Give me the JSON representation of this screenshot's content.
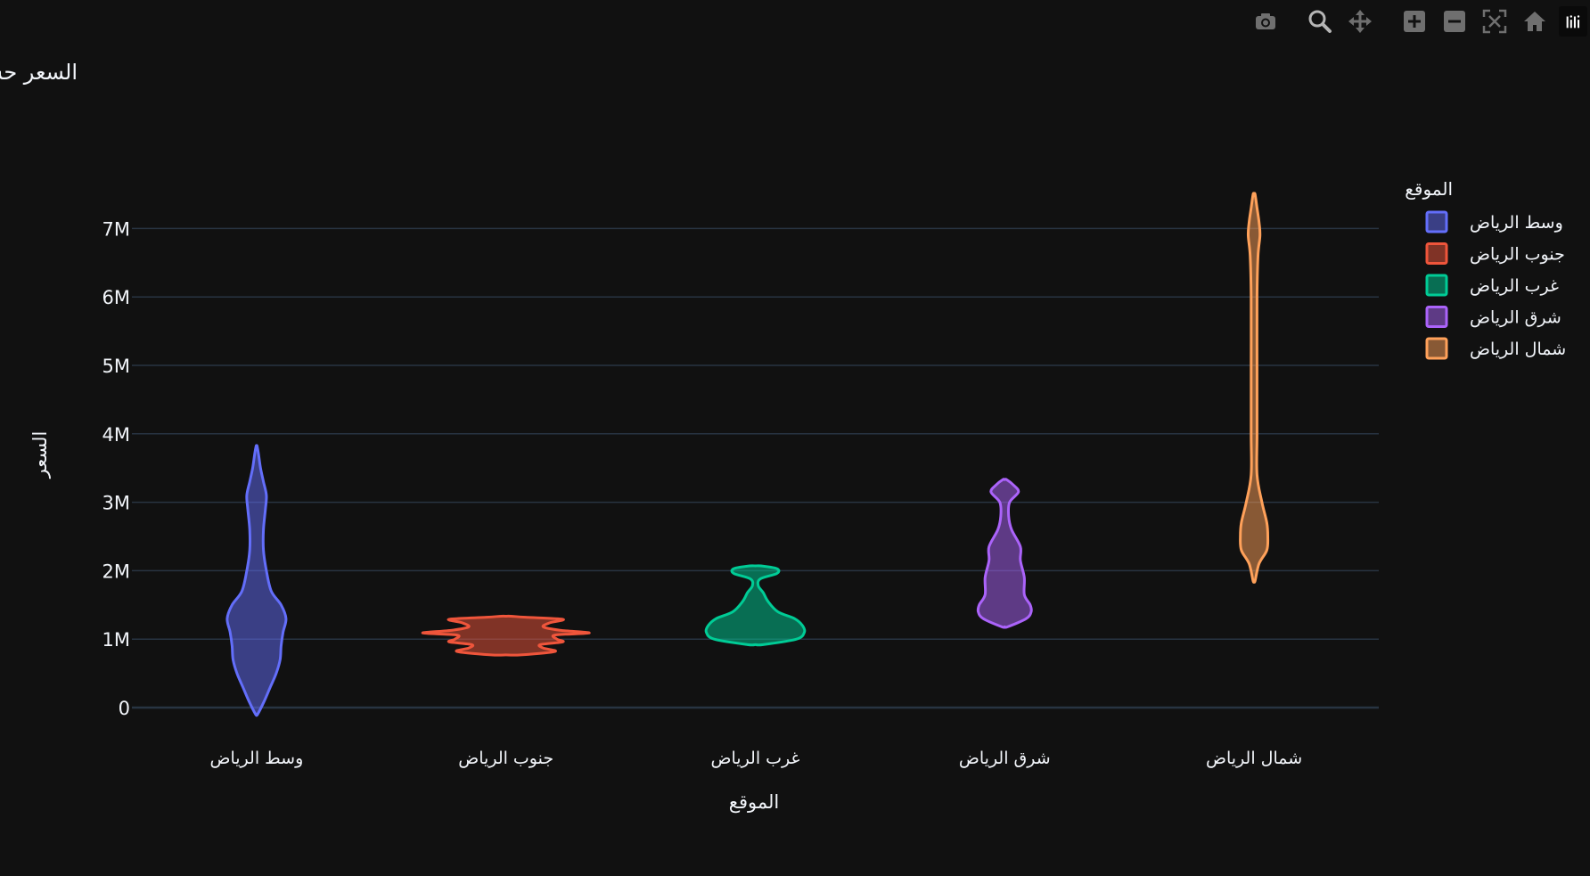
{
  "modebar": {
    "buttons": [
      "camera-icon",
      "zoom-icon",
      "pan-icon",
      "zoom-in-icon",
      "zoom-out-icon",
      "autoscale-icon",
      "home-icon",
      "plotly-logo-icon"
    ]
  },
  "colors": {
    "background": "#111111",
    "grid": "#283442",
    "text": "#f2f5fa",
    "toolbar_icon": "#6f6f6f"
  },
  "chart_data": {
    "type": "violin",
    "title": "السعر حسب الموقع",
    "xlabel": "الموقع",
    "ylabel": "السعر",
    "categories": [
      "وسط الرياض",
      "جنوب الرياض",
      "غرب الرياض",
      "شرق الرياض",
      "شمال الرياض"
    ],
    "ylim": [
      -200000,
      7500000
    ],
    "yticks": [
      0,
      1000000,
      2000000,
      3000000,
      4000000,
      5000000,
      6000000,
      7000000
    ],
    "ytick_labels": [
      "0",
      "1M",
      "2M",
      "3M",
      "4M",
      "5M",
      "6M",
      "7M"
    ],
    "grid": true,
    "legend_title": "الموقع",
    "legend_position": "top-right",
    "series": [
      {
        "name": "وسط الرياض",
        "color": "#636efa",
        "density": [
          [
            -100000,
            0.01
          ],
          [
            100000,
            0.08
          ],
          [
            300000,
            0.14
          ],
          [
            500000,
            0.2
          ],
          [
            700000,
            0.24
          ],
          [
            900000,
            0.25
          ],
          [
            1100000,
            0.27
          ],
          [
            1300000,
            0.3
          ],
          [
            1500000,
            0.25
          ],
          [
            1700000,
            0.15
          ],
          [
            2000000,
            0.1
          ],
          [
            2300000,
            0.07
          ],
          [
            2600000,
            0.07
          ],
          [
            2900000,
            0.09
          ],
          [
            3100000,
            0.1
          ],
          [
            3300000,
            0.07
          ],
          [
            3500000,
            0.04
          ],
          [
            3700000,
            0.02
          ],
          [
            3820000,
            0.005
          ]
        ]
      },
      {
        "name": "جنوب الرياض",
        "color": "#ef553b",
        "density": [
          [
            770000,
            0.15
          ],
          [
            820000,
            0.5
          ],
          [
            870000,
            0.38
          ],
          [
            920000,
            0.35
          ],
          [
            960000,
            0.58
          ],
          [
            1000000,
            0.52
          ],
          [
            1060000,
            0.5
          ],
          [
            1090000,
            0.85
          ],
          [
            1130000,
            0.55
          ],
          [
            1180000,
            0.38
          ],
          [
            1240000,
            0.45
          ],
          [
            1290000,
            0.58
          ],
          [
            1320000,
            0.2
          ],
          [
            1335000,
            0.05
          ]
        ]
      },
      {
        "name": "غرب الرياض",
        "color": "#00cc96",
        "density": [
          [
            920000,
            0.08
          ],
          [
            1000000,
            0.42
          ],
          [
            1100000,
            0.5
          ],
          [
            1200000,
            0.48
          ],
          [
            1300000,
            0.4
          ],
          [
            1400000,
            0.23
          ],
          [
            1550000,
            0.13
          ],
          [
            1680000,
            0.08
          ],
          [
            1780000,
            0.03
          ],
          [
            1880000,
            0.05
          ],
          [
            1960000,
            0.22
          ],
          [
            2030000,
            0.22
          ],
          [
            2070000,
            0.06
          ]
        ]
      },
      {
        "name": "شرق الرياض",
        "color": "#ab63fa",
        "density": [
          [
            1180000,
            0.03
          ],
          [
            1300000,
            0.22
          ],
          [
            1400000,
            0.27
          ],
          [
            1500000,
            0.26
          ],
          [
            1650000,
            0.2
          ],
          [
            1900000,
            0.2
          ],
          [
            2150000,
            0.16
          ],
          [
            2350000,
            0.16
          ],
          [
            2600000,
            0.07
          ],
          [
            2800000,
            0.04
          ],
          [
            3000000,
            0.05
          ],
          [
            3150000,
            0.14
          ],
          [
            3250000,
            0.09
          ],
          [
            3330000,
            0.02
          ]
        ]
      },
      {
        "name": "شمال الرياض",
        "color": "#ffa15a",
        "density": [
          [
            1850000,
            0.01
          ],
          [
            2100000,
            0.05
          ],
          [
            2300000,
            0.13
          ],
          [
            2500000,
            0.14
          ],
          [
            2700000,
            0.13
          ],
          [
            3000000,
            0.08
          ],
          [
            3400000,
            0.03
          ],
          [
            4000000,
            0.03
          ],
          [
            5000000,
            0.03
          ],
          [
            6000000,
            0.03
          ],
          [
            6600000,
            0.04
          ],
          [
            6900000,
            0.06
          ],
          [
            7100000,
            0.05
          ],
          [
            7300000,
            0.03
          ],
          [
            7500000,
            0.01
          ]
        ]
      }
    ]
  }
}
